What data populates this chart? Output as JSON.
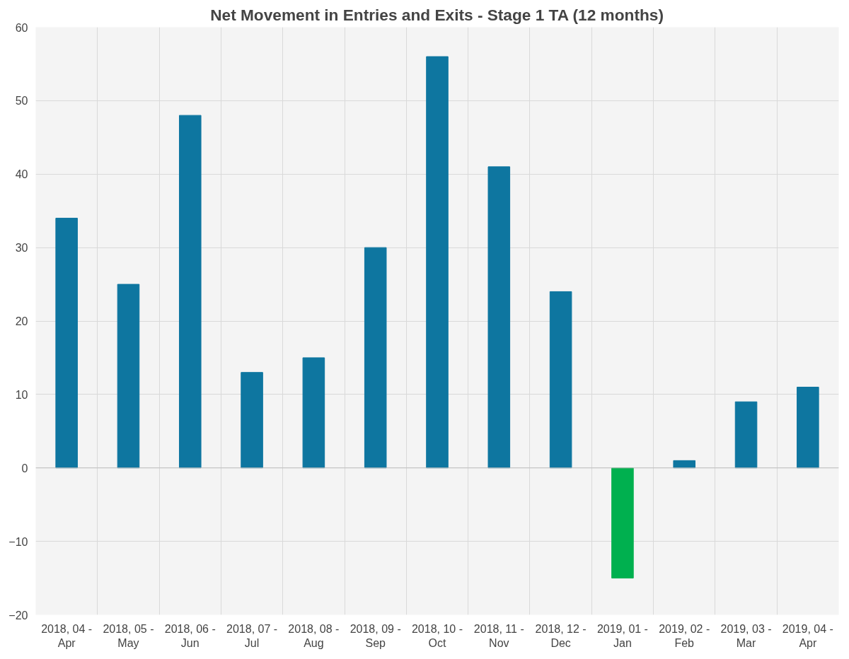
{
  "chart_data": {
    "type": "bar",
    "title": "Net Movement in Entries and Exits - Stage 1 TA (12 months)",
    "categories": [
      "2018, 04 - Apr",
      "2018, 05 - May",
      "2018, 06 - Jun",
      "2018, 07 - Jul",
      "2018, 08 - Aug",
      "2018, 09 - Sep",
      "2018, 10 - Oct",
      "2018, 11 - Nov",
      "2018, 12 - Dec",
      "2019, 01 - Jan",
      "2019, 02 - Feb",
      "2019, 03 - Mar",
      "2019, 04 - Apr"
    ],
    "values": [
      34,
      25,
      48,
      13,
      15,
      30,
      56,
      41,
      24,
      -15,
      1,
      9,
      11
    ],
    "colors": [
      "#0e76a0",
      "#0e76a0",
      "#0e76a0",
      "#0e76a0",
      "#0e76a0",
      "#0e76a0",
      "#0e76a0",
      "#0e76a0",
      "#0e76a0",
      "#00b04f",
      "#0e76a0",
      "#0e76a0",
      "#0e76a0"
    ],
    "ylim": [
      -20,
      60
    ],
    "yticks": [
      -20,
      -10,
      0,
      10,
      20,
      30,
      40,
      50,
      60
    ],
    "grid": true
  }
}
